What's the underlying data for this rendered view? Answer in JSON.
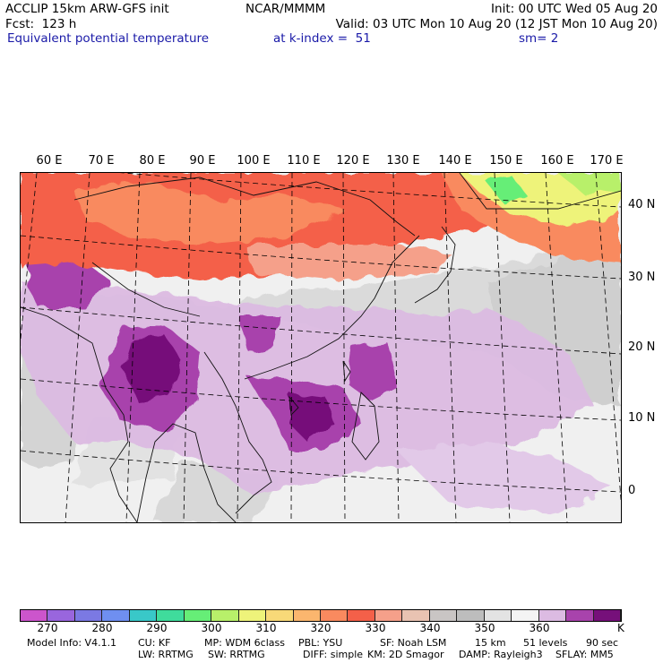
{
  "header": {
    "model_title": "ACCLIP 15km ARW-GFS init",
    "center": "NCAR/MMMM",
    "init": "Init: 00 UTC Wed 05 Aug 20",
    "forecast": "Fcst:  123 h",
    "valid": "Valid: 03 UTC Mon 10 Aug 20 (12 JST Mon 10 Aug 20)",
    "field_name": "Equivalent potential temperature",
    "level": "at k-index =  51",
    "smoothing": "sm= 2"
  },
  "map": {
    "lon_labels": [
      "60 E",
      "70 E",
      "80 E",
      "90 E",
      "100 E",
      "110 E",
      "120 E",
      "130 E",
      "140 E",
      "150 E",
      "160 E",
      "170 E"
    ],
    "lat_labels": [
      "40 N",
      "30 N",
      "20 N",
      "10 N",
      "0"
    ]
  },
  "colorbar": {
    "colors": [
      "#cc55cc",
      "#9966dd",
      "#7b79e3",
      "#6f8ff0",
      "#39c8c8",
      "#3fdc9c",
      "#66ee77",
      "#b8f06a",
      "#eef37a",
      "#f8d978",
      "#fbb66e",
      "#f98a5f",
      "#f46049",
      "#f5a08a",
      "#e9c3b2",
      "#c9c5c4",
      "#bdbdbd",
      "#e3e3e3",
      "#f4f4f4",
      "#dcbbe2",
      "#a843ac",
      "#76107a"
    ],
    "ticks": [
      "270",
      "280",
      "290",
      "300",
      "310",
      "320",
      "330",
      "340",
      "350",
      "360"
    ],
    "unit": "K"
  },
  "model_info": {
    "line1": [
      "Model Info: V4.1.1",
      "CU: KF",
      "MP: WDM 6class",
      "PBL: YSU",
      "SF: Noah LSM",
      "15 km",
      "51 levels",
      "90 sec"
    ],
    "line2": [
      "LW: RRTMG",
      "SW: RRTMG",
      "DIFF: simple",
      "KM: 2D Smagor",
      "DAMP: Rayleigh3",
      "SFLAY: MM5"
    ]
  }
}
